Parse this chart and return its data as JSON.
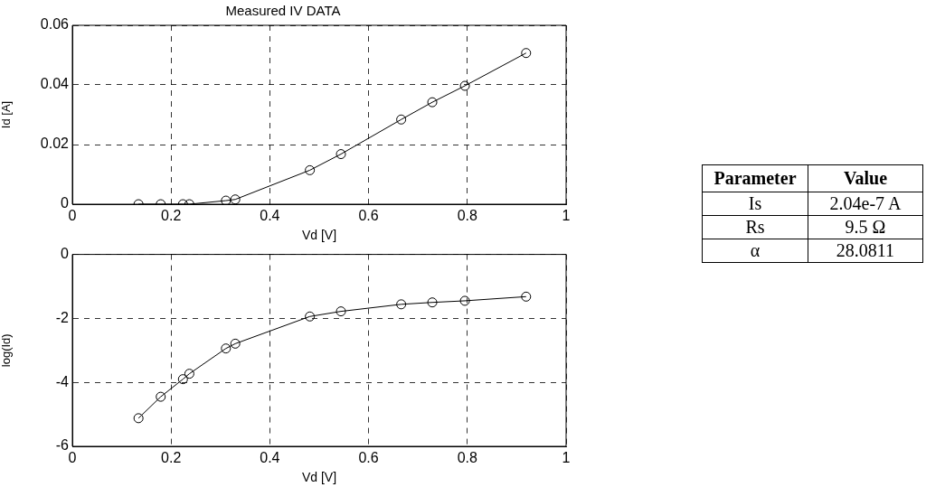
{
  "chart_data": [
    {
      "type": "line",
      "title": "Measured IV DATA",
      "xlabel": "Vd [V]",
      "ylabel": "Id [A]",
      "x": [
        0.134,
        0.179,
        0.224,
        0.237,
        0.311,
        0.33,
        0.481,
        0.544,
        0.666,
        0.729,
        0.795,
        0.919
      ],
      "values": [
        0,
        0,
        0,
        0,
        0.0012,
        0.0016,
        0.0114,
        0.0168,
        0.0284,
        0.0342,
        0.0397,
        0.0507
      ],
      "color": "#000000",
      "xlim": [
        0,
        1
      ],
      "ylim": [
        0,
        0.06
      ],
      "xticks": [
        0,
        0.2,
        0.4,
        0.6,
        0.8,
        1
      ],
      "yticks": [
        0,
        0.02,
        0.04,
        0.06
      ],
      "grid": true,
      "marker": "circle",
      "line_style": "solid"
    },
    {
      "type": "line",
      "xlabel": "Vd [V]",
      "ylabel": "log(Id)",
      "x": [
        0.134,
        0.179,
        0.224,
        0.237,
        0.311,
        0.33,
        0.481,
        0.544,
        0.666,
        0.729,
        0.795,
        0.919
      ],
      "values": [
        -5.12,
        -4.45,
        -3.9,
        -3.73,
        -2.94,
        -2.79,
        -1.94,
        -1.78,
        -1.56,
        -1.5,
        -1.45,
        -1.32
      ],
      "color": "#000000",
      "xlim": [
        0,
        1
      ],
      "ylim": [
        -6,
        0
      ],
      "xticks": [
        0,
        0.2,
        0.4,
        0.6,
        0.8,
        1
      ],
      "yticks": [
        -6,
        -4,
        -2,
        0
      ],
      "grid": true,
      "marker": "circle",
      "line_style": "solid"
    },
    {
      "type": "other",
      "categories": [
        "Parameter",
        "Value"
      ],
      "cell_labels": [
        [
          "Is",
          "2.04e-7 A"
        ],
        [
          "Rs",
          "9.5 Ω"
        ],
        [
          "α",
          "28.0811"
        ]
      ]
    }
  ]
}
